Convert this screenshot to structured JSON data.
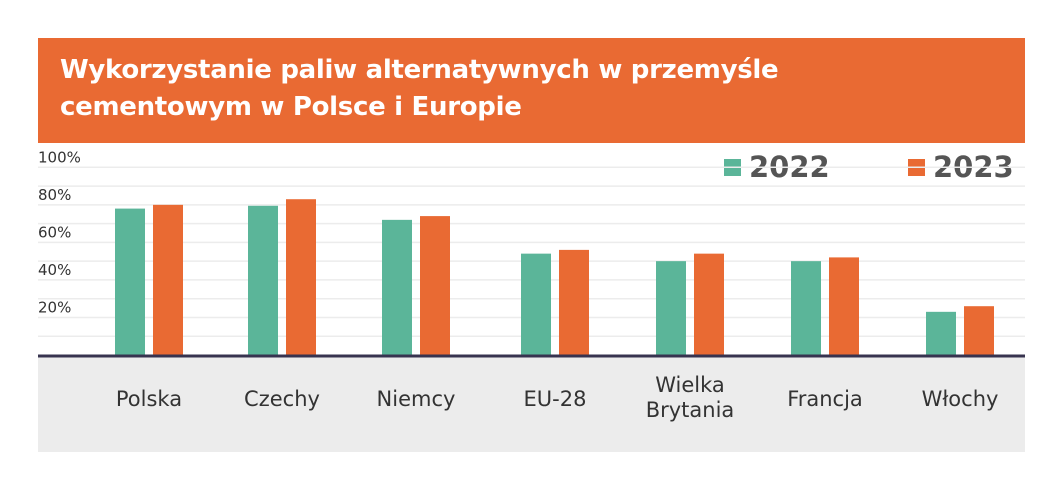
{
  "chart_data": {
    "type": "bar",
    "title": "Wykorzystanie paliw alternatywnych w przemyśle cementowym w Polsce i Europie",
    "title_lines": [
      "Wykorzystanie paliw alternatywnych w przemyśle",
      "cementowym w Polsce i Europie"
    ],
    "categories": [
      "Polska",
      "Czechy",
      "Niemcy",
      "EU-28",
      "Wielka Brytania",
      "Francja",
      "Włochy"
    ],
    "category_lines": [
      [
        "Polska"
      ],
      [
        "Czechy"
      ],
      [
        "Niemcy"
      ],
      [
        "EU-28"
      ],
      [
        "Wielka",
        "Brytania"
      ],
      [
        "Francja"
      ],
      [
        "Włochy"
      ]
    ],
    "series": [
      {
        "name": "2022",
        "color": "#5bb599",
        "values": [
          78,
          79.5,
          72,
          54,
          50,
          50,
          23
        ]
      },
      {
        "name": "2023",
        "color": "#e96a33",
        "values": [
          80,
          83,
          74,
          56,
          54,
          52,
          26
        ]
      }
    ],
    "ylim": [
      0,
      100
    ],
    "yticks": [
      20,
      40,
      60,
      80,
      100
    ],
    "ytick_labels": [
      "20%",
      "40%",
      "60%",
      "80%",
      "100%"
    ],
    "grid": true,
    "grid_step": 10,
    "legend_position": "top-right",
    "xlabel": "",
    "ylabel": ""
  }
}
